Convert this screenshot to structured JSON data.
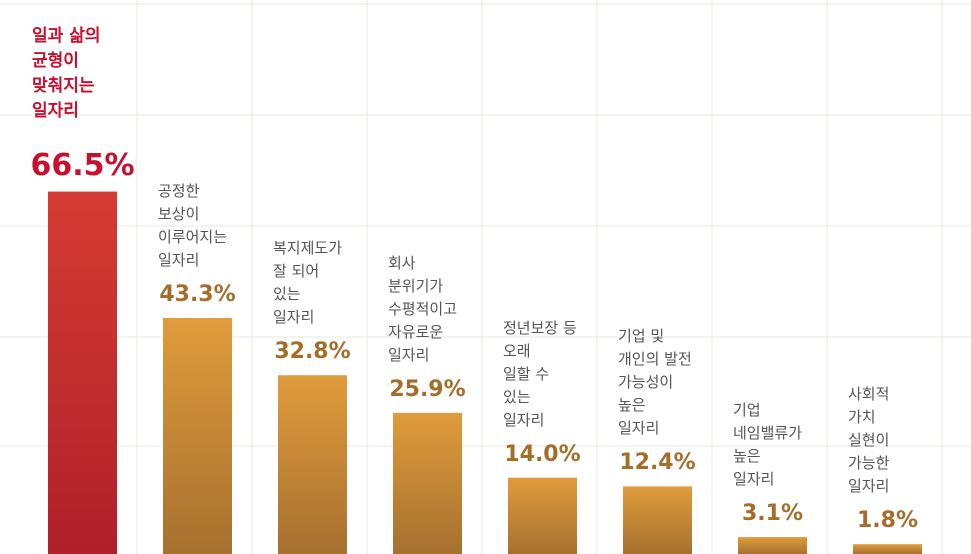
{
  "chart_data": {
    "type": "bar",
    "categories": [
      "일과 삶의\n균형이\n맞춰지는\n일자리",
      "공정한\n보상이\n이루어지는\n일자리",
      "복지제도가\n잘 되어\n있는\n일자리",
      "회사\n분위기가\n수평적이고\n자유로운\n일자리",
      "정년보장 등\n오래\n일할 수\n있는\n일자리",
      "기업 및\n개인의 발전\n가능성이\n높은\n일자리",
      "기업\n네임밸류가\n높은\n일자리",
      "사회적\n가치\n실현이\n가능한\n일자리"
    ],
    "values": [
      66.5,
      43.3,
      32.8,
      25.9,
      14.0,
      12.4,
      3.1,
      1.8
    ],
    "value_labels": [
      "66.5%",
      "43.3%",
      "32.8%",
      "25.9%",
      "14.0%",
      "12.4%",
      "3.1%",
      "1.8%"
    ],
    "colors": [
      "#c62a2e",
      "#c98a35",
      "#c98a35",
      "#c98a35",
      "#c98a35",
      "#c98a35",
      "#c98a35",
      "#c98a35"
    ],
    "label_colors": [
      "#c8102e",
      "#a46d2a",
      "#a46d2a",
      "#a46d2a",
      "#a46d2a",
      "#a46d2a",
      "#a46d2a",
      "#a46d2a"
    ]
  }
}
